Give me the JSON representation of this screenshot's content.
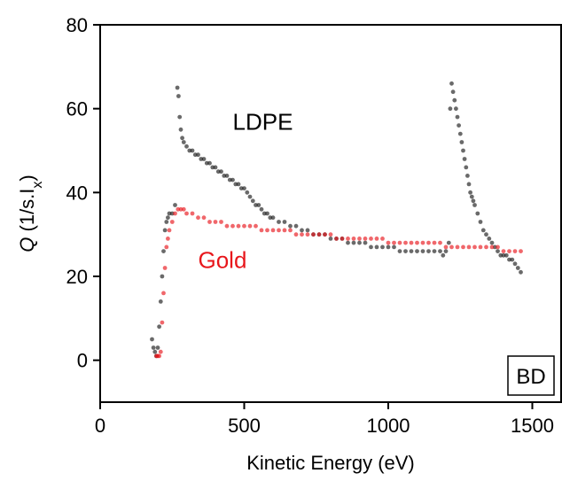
{
  "chart_data": {
    "type": "scatter",
    "title": "",
    "xlabel": "Kinetic Energy (eV)",
    "ylabel": {
      "symbol": "Q",
      "text": " (1/s.I",
      "subscript": "x",
      "close": ")"
    },
    "xlim": [
      0,
      1600
    ],
    "ylim": [
      -10,
      80
    ],
    "xticks": [
      0,
      500,
      1000,
      1500
    ],
    "yticks": [
      0,
      20,
      40,
      60,
      80
    ],
    "grid": false,
    "badge": "BD",
    "series": [
      {
        "name": "LDPE",
        "color": "#1a1a1a",
        "label_at": [
          460,
          55
        ],
        "points": [
          [
            180,
            5
          ],
          [
            185,
            3
          ],
          [
            190,
            2
          ],
          [
            195,
            1
          ],
          [
            200,
            3
          ],
          [
            205,
            8
          ],
          [
            210,
            14
          ],
          [
            215,
            20
          ],
          [
            220,
            26
          ],
          [
            225,
            31
          ],
          [
            230,
            33
          ],
          [
            235,
            34
          ],
          [
            240,
            35
          ],
          [
            250,
            35
          ],
          [
            260,
            37
          ],
          [
            268,
            65
          ],
          [
            272,
            63
          ],
          [
            276,
            58
          ],
          [
            280,
            55
          ],
          [
            285,
            53
          ],
          [
            290,
            52
          ],
          [
            300,
            51
          ],
          [
            310,
            50
          ],
          [
            320,
            50
          ],
          [
            330,
            49
          ],
          [
            340,
            49
          ],
          [
            350,
            48
          ],
          [
            360,
            48
          ],
          [
            370,
            47
          ],
          [
            380,
            47
          ],
          [
            390,
            46
          ],
          [
            400,
            46
          ],
          [
            410,
            45
          ],
          [
            420,
            45
          ],
          [
            430,
            44
          ],
          [
            440,
            44
          ],
          [
            450,
            43
          ],
          [
            460,
            43
          ],
          [
            470,
            42
          ],
          [
            480,
            42
          ],
          [
            490,
            41
          ],
          [
            500,
            41
          ],
          [
            510,
            40
          ],
          [
            520,
            39
          ],
          [
            530,
            38
          ],
          [
            540,
            37
          ],
          [
            550,
            37
          ],
          [
            560,
            36
          ],
          [
            570,
            35
          ],
          [
            580,
            35
          ],
          [
            590,
            34
          ],
          [
            600,
            34
          ],
          [
            620,
            33
          ],
          [
            640,
            33
          ],
          [
            660,
            32
          ],
          [
            680,
            32
          ],
          [
            700,
            31
          ],
          [
            720,
            31
          ],
          [
            740,
            30
          ],
          [
            760,
            30
          ],
          [
            780,
            30
          ],
          [
            800,
            29
          ],
          [
            820,
            29
          ],
          [
            840,
            29
          ],
          [
            860,
            28
          ],
          [
            880,
            28
          ],
          [
            900,
            28
          ],
          [
            920,
            28
          ],
          [
            940,
            27
          ],
          [
            960,
            27
          ],
          [
            980,
            27
          ],
          [
            1000,
            27
          ],
          [
            1020,
            27
          ],
          [
            1040,
            26
          ],
          [
            1060,
            26
          ],
          [
            1080,
            26
          ],
          [
            1100,
            26
          ],
          [
            1120,
            26
          ],
          [
            1140,
            26
          ],
          [
            1160,
            26
          ],
          [
            1180,
            26
          ],
          [
            1190,
            25
          ],
          [
            1200,
            26
          ],
          [
            1210,
            28
          ],
          [
            1215,
            60
          ],
          [
            1220,
            66
          ],
          [
            1225,
            64
          ],
          [
            1230,
            62
          ],
          [
            1235,
            60
          ],
          [
            1240,
            58
          ],
          [
            1245,
            56
          ],
          [
            1250,
            54
          ],
          [
            1255,
            52
          ],
          [
            1260,
            50
          ],
          [
            1265,
            48
          ],
          [
            1270,
            46
          ],
          [
            1275,
            44
          ],
          [
            1280,
            42
          ],
          [
            1285,
            40
          ],
          [
            1290,
            39
          ],
          [
            1295,
            38
          ],
          [
            1300,
            37
          ],
          [
            1310,
            35
          ],
          [
            1320,
            33
          ],
          [
            1330,
            31
          ],
          [
            1340,
            30
          ],
          [
            1350,
            29
          ],
          [
            1360,
            28
          ],
          [
            1370,
            27
          ],
          [
            1380,
            26
          ],
          [
            1390,
            25
          ],
          [
            1400,
            25
          ],
          [
            1410,
            25
          ],
          [
            1420,
            24
          ],
          [
            1430,
            24
          ],
          [
            1440,
            23
          ],
          [
            1450,
            22
          ],
          [
            1460,
            21
          ]
        ]
      },
      {
        "name": "Gold",
        "color": "#e8161b",
        "label_at": [
          340,
          22
        ],
        "points": [
          [
            195,
            1
          ],
          [
            200,
            1
          ],
          [
            205,
            1
          ],
          [
            210,
            2
          ],
          [
            215,
            9
          ],
          [
            220,
            16
          ],
          [
            225,
            22
          ],
          [
            230,
            27
          ],
          [
            235,
            29
          ],
          [
            240,
            31
          ],
          [
            250,
            33
          ],
          [
            260,
            35
          ],
          [
            270,
            36
          ],
          [
            280,
            36
          ],
          [
            290,
            36
          ],
          [
            300,
            35
          ],
          [
            320,
            35
          ],
          [
            340,
            34
          ],
          [
            360,
            34
          ],
          [
            380,
            33
          ],
          [
            400,
            33
          ],
          [
            420,
            33
          ],
          [
            440,
            32
          ],
          [
            460,
            32
          ],
          [
            480,
            32
          ],
          [
            500,
            32
          ],
          [
            520,
            32
          ],
          [
            540,
            32
          ],
          [
            560,
            31
          ],
          [
            580,
            31
          ],
          [
            600,
            31
          ],
          [
            620,
            31
          ],
          [
            640,
            31
          ],
          [
            660,
            31
          ],
          [
            680,
            30
          ],
          [
            700,
            30
          ],
          [
            720,
            30
          ],
          [
            740,
            30
          ],
          [
            760,
            30
          ],
          [
            780,
            30
          ],
          [
            800,
            30
          ],
          [
            820,
            29
          ],
          [
            840,
            29
          ],
          [
            860,
            29
          ],
          [
            880,
            29
          ],
          [
            900,
            29
          ],
          [
            920,
            29
          ],
          [
            940,
            29
          ],
          [
            960,
            29
          ],
          [
            980,
            29
          ],
          [
            1000,
            28
          ],
          [
            1020,
            28
          ],
          [
            1040,
            28
          ],
          [
            1060,
            28
          ],
          [
            1080,
            28
          ],
          [
            1100,
            28
          ],
          [
            1120,
            28
          ],
          [
            1140,
            28
          ],
          [
            1160,
            28
          ],
          [
            1180,
            28
          ],
          [
            1200,
            27
          ],
          [
            1220,
            27
          ],
          [
            1240,
            27
          ],
          [
            1260,
            27
          ],
          [
            1280,
            27
          ],
          [
            1300,
            27
          ],
          [
            1320,
            27
          ],
          [
            1340,
            27
          ],
          [
            1360,
            27
          ],
          [
            1380,
            27
          ],
          [
            1400,
            26
          ],
          [
            1420,
            26
          ],
          [
            1440,
            26
          ],
          [
            1460,
            26
          ]
        ]
      }
    ]
  }
}
